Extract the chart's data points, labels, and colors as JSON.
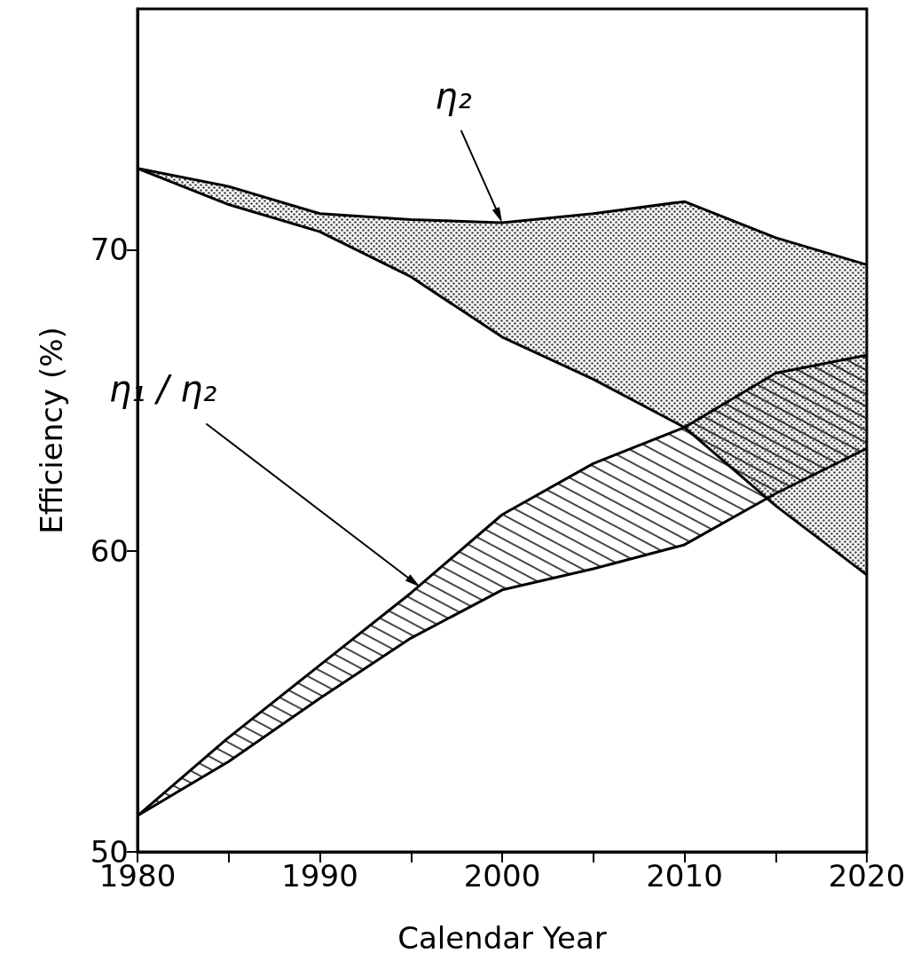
{
  "chart_data": {
    "type": "line",
    "xlabel": "Calendar Year",
    "ylabel": "Efficiency (%)",
    "x": [
      1980,
      1985,
      1990,
      1995,
      2000,
      2005,
      2010,
      2015,
      2020
    ],
    "series": [
      {
        "color": "#000000",
        "values": [
          72.7,
          72.1,
          71.2,
          71.0,
          70.9,
          71.2,
          71.6,
          70.4,
          69.5
        ]
      },
      {
        "color": "#000000",
        "values": [
          72.7,
          71.5,
          70.6,
          69.1,
          67.1,
          65.7,
          64.1,
          61.5,
          59.2
        ]
      },
      {
        "color": "#000000",
        "values": [
          51.2,
          53.8,
          56.2,
          58.6,
          61.2,
          62.9,
          64.1,
          65.9,
          66.5
        ]
      },
      {
        "color": "#000000",
        "values": [
          51.2,
          53.0,
          55.1,
          57.1,
          58.7,
          59.4,
          60.2,
          61.9,
          63.4
        ]
      }
    ],
    "annotations": [
      {
        "text": "η₂",
        "x": 2000,
        "y": 70.9
      },
      {
        "text": "η₁ / η₂",
        "x": 1995.5,
        "y": 58.8
      }
    ],
    "xlim": [
      1980,
      2020
    ],
    "ylim": [
      50,
      78
    ],
    "xticks": [
      1980,
      {
        "value": 1985,
        "label": null
      },
      1990,
      {
        "value": 1995,
        "label": null
      },
      2000,
      {
        "value": 2005,
        "label": null
      },
      2010,
      {
        "value": 2015,
        "label": null
      },
      2020
    ],
    "yticks": [
      50,
      60,
      70
    ],
    "grid": false,
    "marker": "none",
    "line_style": "solid"
  }
}
